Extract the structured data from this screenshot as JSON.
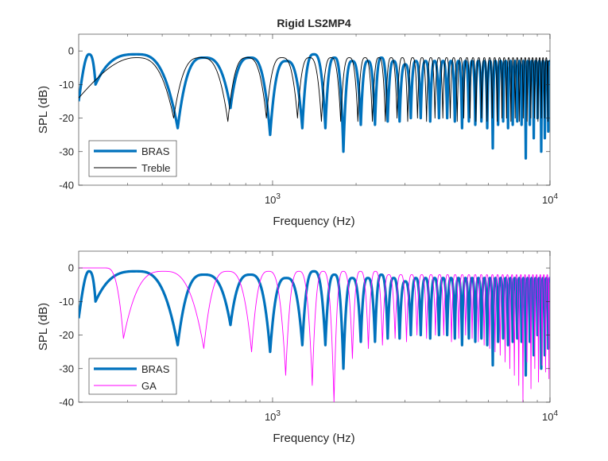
{
  "colors": {
    "bras": "#0072BD",
    "treble": "#000000",
    "ga": "#FF00FF",
    "axis": "#262626",
    "background": "#FFFFFF"
  },
  "chart_data": [
    {
      "type": "line",
      "title": "Rigid LS2MP4",
      "xlabel": "Frequency (Hz)",
      "ylabel": "SPL (dB)",
      "xscale": "log",
      "xlim": [
        200,
        10000
      ],
      "ylim": [
        -40,
        5
      ],
      "x_ticks": [
        {
          "value": 1000,
          "base": "10",
          "exp": "3"
        },
        {
          "value": 10000,
          "base": "10",
          "exp": "4"
        }
      ],
      "y_ticks": [
        0,
        -10,
        -20,
        -30,
        -40
      ],
      "legend": {
        "position": "bottom-left",
        "entries": [
          "BRAS",
          "Treble"
        ]
      },
      "series": [
        {
          "name": "BRAS",
          "color": "#0072BD",
          "width": 3.2,
          "generator": {
            "nulls": [
              230,
              455,
              705,
              980,
              1280,
              1550,
              1800,
              2080,
              2340,
              2600,
              2870,
              3150,
              3420,
              3700,
              3980,
              4260,
              4540,
              4820,
              5100,
              5380,
              5660,
              5940,
              6220,
              6500,
              6780,
              7060,
              7340,
              7620,
              7900,
              8180,
              8460,
              8740,
              9020,
              9300,
              9580,
              9860
            ],
            "depths": [
              -10,
              -23,
              -17,
              -25,
              -23,
              -23,
              -30,
              -22,
              -22,
              -21,
              -21,
              -20,
              -20,
              -21,
              -20,
              -20,
              -21,
              -23,
              -21,
              -22,
              -21,
              -23,
              -29,
              -22,
              -21,
              -23,
              -22,
              -21,
              -22,
              -32,
              -22,
              -26,
              -20,
              -30,
              -26,
              -24
            ],
            "peaks": [
              -1,
              -1,
              -2,
              -2,
              -3,
              -1,
              -2,
              -3,
              -3,
              -2,
              -3,
              -4,
              -3,
              -3,
              -3,
              -3,
              -3,
              -3,
              -3,
              -3,
              -3,
              -3,
              -3,
              -3,
              -3,
              -3,
              -3,
              -3,
              -3,
              -3,
              -3,
              -3,
              -3,
              -3,
              -3,
              -3,
              -3
            ],
            "start": -15,
            "end": -3
          }
        },
        {
          "name": "Treble",
          "color": "#000000",
          "width": 0.9,
          "generator": {
            "nulls": [
              440,
              690,
              950,
              1230,
              1500,
              1760,
              2030,
              2290,
              2550,
              2810,
              3070,
              3330,
              3590,
              3850,
              4110,
              4370,
              4630,
              4890,
              5150,
              5410,
              5670,
              5930,
              6190,
              6450,
              6710,
              6970,
              7230,
              7490,
              7750,
              8010,
              8270,
              8530,
              8790,
              9050,
              9310,
              9570,
              9830
            ],
            "depths": [
              -20,
              -21,
              -20,
              -20,
              -21,
              -21,
              -21,
              -21,
              -21,
              -20,
              -21,
              -20,
              -21,
              -20,
              -20,
              -20,
              -21,
              -20,
              -20,
              -21,
              -20,
              -21,
              -20,
              -21,
              -20,
              -20,
              -21,
              -20,
              -21,
              -20,
              -21,
              -20,
              -20,
              -21,
              -20,
              -20,
              -21
            ],
            "peaks": [
              -2,
              -2,
              -2,
              -2,
              -2,
              -2,
              -2,
              -2,
              -2,
              -2,
              -2,
              -2,
              -2,
              -2,
              -2,
              -2,
              -2,
              -2,
              -2,
              -2,
              -2,
              -2,
              -2,
              -2,
              -2,
              -2,
              -2,
              -2,
              -2,
              -2,
              -2,
              -2,
              -2,
              -2,
              -2,
              -2,
              -2,
              -2
            ],
            "start": -14,
            "end": -3
          }
        }
      ]
    },
    {
      "type": "line",
      "title": "",
      "xlabel": "Frequency (Hz)",
      "ylabel": "SPL (dB)",
      "xscale": "log",
      "xlim": [
        200,
        10000
      ],
      "ylim": [
        -40,
        5
      ],
      "x_ticks": [
        {
          "value": 1000,
          "base": "10",
          "exp": "3"
        },
        {
          "value": 10000,
          "base": "10",
          "exp": "4"
        }
      ],
      "y_ticks": [
        0,
        -10,
        -20,
        -30,
        -40
      ],
      "legend": {
        "position": "bottom-left",
        "entries": [
          "BRAS",
          "GA"
        ]
      },
      "series": [
        {
          "name": "BRAS",
          "color": "#0072BD",
          "width": 3.2,
          "generator": {
            "nulls": [
              230,
              455,
              705,
              980,
              1280,
              1550,
              1800,
              2080,
              2340,
              2600,
              2870,
              3150,
              3420,
              3700,
              3980,
              4260,
              4540,
              4820,
              5100,
              5380,
              5660,
              5940,
              6220,
              6500,
              6780,
              7060,
              7340,
              7620,
              7900,
              8180,
              8460,
              8740,
              9020,
              9300,
              9580,
              9860
            ],
            "depths": [
              -10,
              -23,
              -17,
              -25,
              -23,
              -23,
              -30,
              -22,
              -22,
              -21,
              -21,
              -20,
              -20,
              -21,
              -20,
              -20,
              -21,
              -23,
              -21,
              -22,
              -21,
              -23,
              -29,
              -22,
              -21,
              -23,
              -22,
              -21,
              -22,
              -32,
              -22,
              -26,
              -20,
              -30,
              -26,
              -24
            ],
            "peaks": [
              -1,
              -1,
              -2,
              -2,
              -3,
              -1,
              -2,
              -3,
              -3,
              -2,
              -3,
              -4,
              -3,
              -3,
              -3,
              -3,
              -3,
              -3,
              -3,
              -3,
              -3,
              -3,
              -3,
              -3,
              -3,
              -3,
              -3,
              -3,
              -3,
              -3,
              -3,
              -3,
              -3,
              -3,
              -3,
              -3,
              -3
            ],
            "start": -15,
            "end": -3
          }
        },
        {
          "name": "GA",
          "color": "#FF00FF",
          "width": 0.9,
          "generator": {
            "nulls": [
              290,
              565,
              840,
              1115,
              1390,
              1665,
              1940,
              2215,
              2490,
              2765,
              3040,
              3315,
              3590,
              3865,
              4140,
              4415,
              4690,
              4965,
              5240,
              5515,
              5790,
              6065,
              6340,
              6615,
              6890,
              7165,
              7440,
              7715,
              7990,
              8265,
              8540,
              8815,
              9090,
              9365,
              9640,
              9915
            ],
            "depths": [
              -21,
              -24,
              -25,
              -32,
              -35,
              -40,
              -27,
              -24,
              -23,
              -21,
              -22,
              -20,
              -21,
              -20,
              -20,
              -22,
              -21,
              -20,
              -21,
              -22,
              -23,
              -24,
              -25,
              -26,
              -28,
              -30,
              -32,
              -35,
              -40,
              -28,
              -36,
              -30,
              -34,
              -29,
              -31,
              -33
            ],
            "peaks": [
              0,
              -1,
              -1,
              -1,
              -1,
              -1,
              -1,
              -1,
              -1,
              -2,
              -2,
              -2,
              -2,
              -2,
              -2,
              -2,
              -2,
              -2,
              -2,
              -2,
              -2,
              -2,
              -2,
              -2,
              -2,
              -2,
              -2,
              -2,
              -2,
              -2,
              -2,
              -2,
              -2,
              -2,
              -2,
              -2,
              -2
            ],
            "start": 0,
            "end": -5
          }
        }
      ]
    }
  ]
}
